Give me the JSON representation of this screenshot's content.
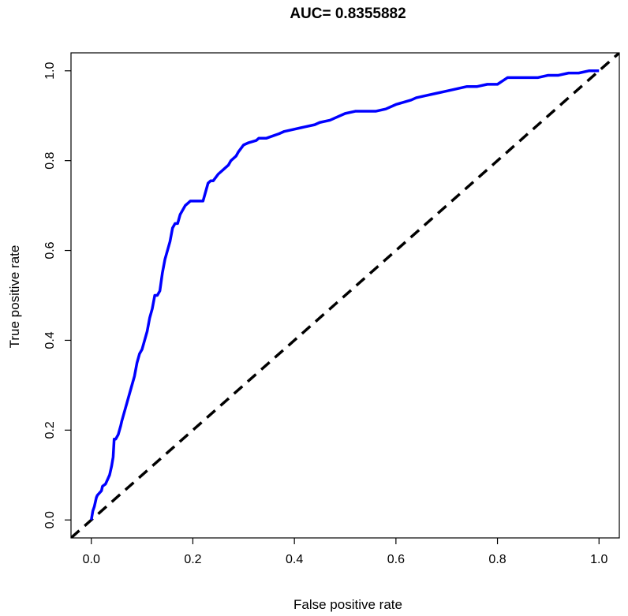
{
  "chart_data": {
    "type": "line",
    "title": "AUC= 0.8355882",
    "xlabel": "False positive rate",
    "ylabel": "True positive rate",
    "xlim": [
      -0.04,
      1.04
    ],
    "ylim": [
      -0.04,
      1.04
    ],
    "x_ticks": [
      0.0,
      0.2,
      0.4,
      0.6,
      0.8,
      1.0
    ],
    "x_tick_labels": [
      "0.0",
      "0.2",
      "0.4",
      "0.6",
      "0.8",
      "1.0"
    ],
    "y_ticks": [
      0.0,
      0.2,
      0.4,
      0.6,
      0.8,
      1.0
    ],
    "y_tick_labels": [
      "0.0",
      "0.2",
      "0.4",
      "0.6",
      "0.8",
      "1.0"
    ],
    "grid": false,
    "series": [
      {
        "color": "#0000ff",
        "style": "solid",
        "x": [
          0.0,
          0.003,
          0.006,
          0.01,
          0.012,
          0.016,
          0.02,
          0.022,
          0.028,
          0.032,
          0.036,
          0.04,
          0.043,
          0.045,
          0.048,
          0.053,
          0.058,
          0.06,
          0.065,
          0.07,
          0.075,
          0.08,
          0.085,
          0.09,
          0.095,
          0.1,
          0.105,
          0.11,
          0.115,
          0.12,
          0.125,
          0.13,
          0.135,
          0.14,
          0.145,
          0.15,
          0.155,
          0.16,
          0.165,
          0.17,
          0.175,
          0.18,
          0.185,
          0.19,
          0.195,
          0.2,
          0.205,
          0.21,
          0.22,
          0.23,
          0.235,
          0.24,
          0.25,
          0.26,
          0.265,
          0.27,
          0.275,
          0.285,
          0.29,
          0.3,
          0.31,
          0.325,
          0.33,
          0.345,
          0.37,
          0.38,
          0.4,
          0.42,
          0.44,
          0.45,
          0.47,
          0.48,
          0.5,
          0.52,
          0.56,
          0.58,
          0.6,
          0.63,
          0.64,
          0.66,
          0.68,
          0.7,
          0.72,
          0.74,
          0.76,
          0.78,
          0.8,
          0.82,
          0.83,
          0.84,
          0.86,
          0.88,
          0.9,
          0.92,
          0.94,
          0.96,
          0.98,
          1.0
        ],
        "y": [
          0.0,
          0.02,
          0.03,
          0.05,
          0.055,
          0.06,
          0.065,
          0.075,
          0.08,
          0.09,
          0.1,
          0.12,
          0.14,
          0.18,
          0.18,
          0.19,
          0.21,
          0.22,
          0.24,
          0.26,
          0.28,
          0.3,
          0.32,
          0.35,
          0.37,
          0.38,
          0.4,
          0.42,
          0.45,
          0.47,
          0.5,
          0.5,
          0.51,
          0.55,
          0.58,
          0.6,
          0.62,
          0.65,
          0.66,
          0.66,
          0.68,
          0.69,
          0.7,
          0.705,
          0.71,
          0.71,
          0.71,
          0.71,
          0.71,
          0.75,
          0.755,
          0.755,
          0.77,
          0.78,
          0.785,
          0.79,
          0.8,
          0.81,
          0.82,
          0.835,
          0.84,
          0.845,
          0.85,
          0.85,
          0.86,
          0.865,
          0.87,
          0.875,
          0.88,
          0.885,
          0.89,
          0.895,
          0.905,
          0.91,
          0.91,
          0.915,
          0.925,
          0.935,
          0.94,
          0.945,
          0.95,
          0.955,
          0.96,
          0.965,
          0.965,
          0.97,
          0.97,
          0.985,
          0.985,
          0.985,
          0.985,
          0.985,
          0.99,
          0.99,
          0.995,
          0.995,
          1.0,
          1.0
        ]
      },
      {
        "color": "#000000",
        "style": "dashed",
        "x": [
          -0.04,
          1.04
        ],
        "y": [
          -0.04,
          1.04
        ]
      }
    ]
  }
}
